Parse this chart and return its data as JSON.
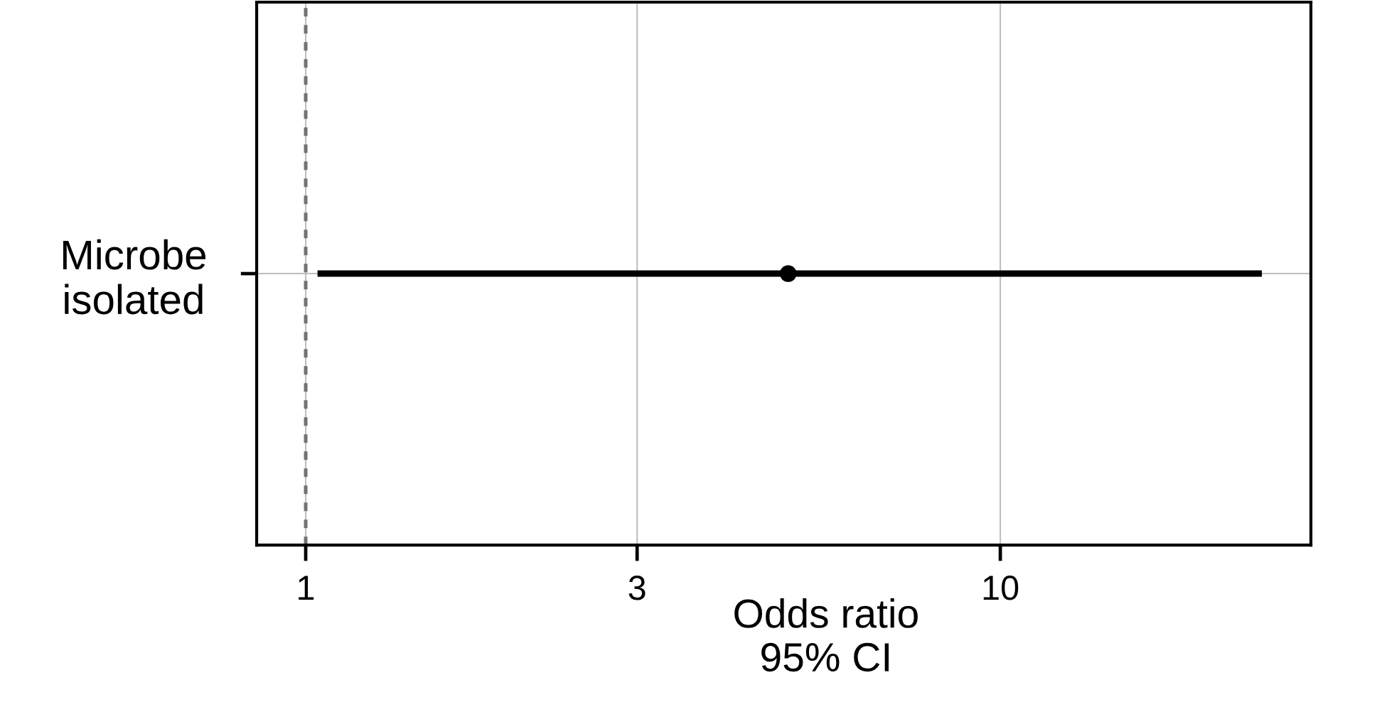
{
  "chart_data": {
    "type": "scatter",
    "orientation": "horizontal",
    "xlabel": "Odds ratio\n95% CI",
    "categories": [
      "Microbe\nisolated"
    ],
    "values": [
      4.95
    ],
    "errors": [
      [
        1.04,
        23.8
      ]
    ],
    "color": "#000000",
    "marker": "circle",
    "log": "x",
    "xlim": [
      0.85,
      28
    ],
    "xticks": [
      1,
      3,
      10
    ],
    "grid": true,
    "ref_lines": [
      {
        "axis": "x",
        "value": 1,
        "color": "#737373",
        "line_style": "dashed"
      }
    ]
  }
}
